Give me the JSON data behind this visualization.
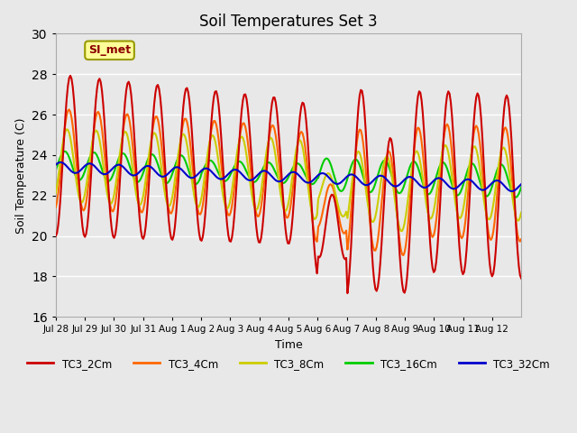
{
  "title": "Soil Temperatures Set 3",
  "xlabel": "Time",
  "ylabel": "Soil Temperature (C)",
  "ylim": [
    16,
    30
  ],
  "xlim_days": [
    0,
    16
  ],
  "background_color": "#e8e8e8",
  "plot_bg_color": "#e8e8e8",
  "grid_color": "white",
  "series": {
    "TC3_2Cm": {
      "color": "#cc0000",
      "lw": 1.5
    },
    "TC3_4Cm": {
      "color": "#ff6600",
      "lw": 1.5
    },
    "TC3_8Cm": {
      "color": "#cccc00",
      "lw": 1.5
    },
    "TC3_16Cm": {
      "color": "#00cc00",
      "lw": 1.5
    },
    "TC3_32Cm": {
      "color": "#0000cc",
      "lw": 1.5
    }
  },
  "xtick_labels": [
    "Jul 28",
    "Jul 29",
    "Jul 30",
    "Jul 31",
    "Aug 1",
    "Aug 2",
    "Aug 3",
    "Aug 4",
    "Aug 5",
    "Aug 6",
    "Aug 7",
    "Aug 8",
    "Aug 9",
    "Aug 10",
    "Aug 11",
    "Aug 12"
  ],
  "xtick_positions": [
    1,
    2,
    3,
    4,
    5,
    6,
    7,
    8,
    9,
    10,
    11,
    12,
    13,
    14,
    15,
    16
  ],
  "annotation_text": "SI_met",
  "annotation_color": "#8B0000",
  "annotation_bg": "#ffff99",
  "annotation_border": "#999900"
}
